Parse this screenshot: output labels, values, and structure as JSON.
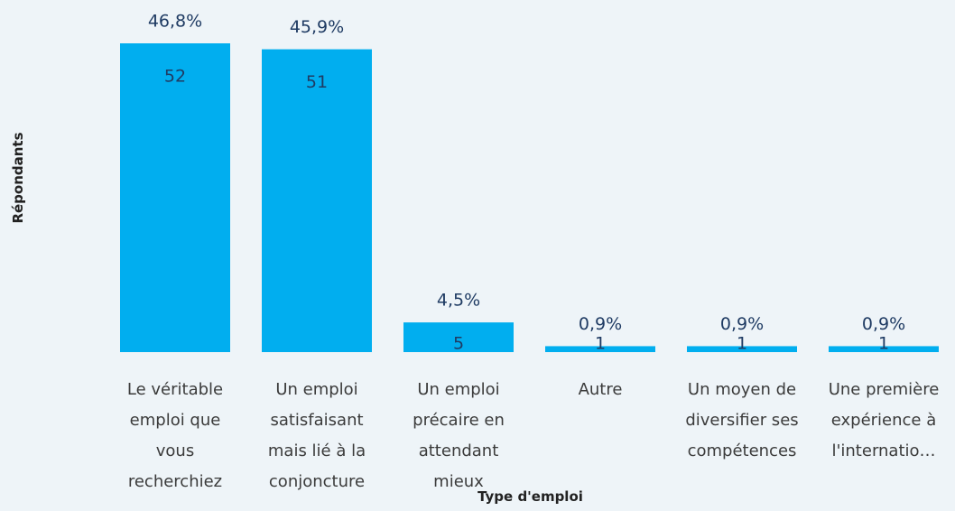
{
  "chart_data": {
    "type": "bar",
    "x_label": "Type d'emploi",
    "y_label": "Répondants",
    "categories": [
      "Le véritable emploi que vous recherchiez",
      "Un emploi satisfaisant mais lié à la conjoncture",
      "Un emploi précaire en attendant mieux",
      "Autre",
      "Un moyen de diversifier ses compétences",
      "Une première expérience à l'internatio…"
    ],
    "values": [
      52,
      51,
      5,
      1,
      1,
      1
    ],
    "percentages": {
      "values": [
        46.8,
        45.9,
        4.5,
        0.9,
        0.9,
        0.9
      ],
      "value_labels": [
        "46,8%",
        "45,9%",
        "4,5%",
        "0,9%",
        "0,9%",
        "0,9%"
      ]
    },
    "color": "#01aeef",
    "ylim": [
      0,
      52
    ]
  }
}
